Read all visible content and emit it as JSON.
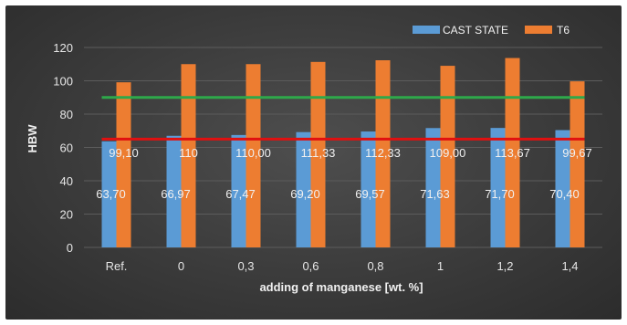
{
  "chart_data": {
    "type": "bar",
    "title": "",
    "xlabel": "adding of manganese [wt. %]",
    "ylabel": "HBW",
    "ylim": [
      0,
      120
    ],
    "yticks": [
      0,
      20,
      40,
      60,
      80,
      100,
      120
    ],
    "grid": true,
    "legend_position": "top-right",
    "categories": [
      "Ref.",
      "0",
      "0,3",
      "0,6",
      "0,8",
      "1",
      "1,2",
      "1,4"
    ],
    "series": [
      {
        "name": "CAST STATE",
        "color": "#5b9bd5",
        "values": [
          63.7,
          66.97,
          67.47,
          69.2,
          69.57,
          71.63,
          71.7,
          70.4
        ],
        "labels": [
          "63,70",
          "66,97",
          "67,47",
          "69,20",
          "69,57",
          "71,63",
          "71,70",
          "70,40"
        ]
      },
      {
        "name": "T6",
        "color": "#ed7d31",
        "values": [
          99.1,
          110.0,
          110.0,
          111.33,
          112.33,
          109.0,
          113.67,
          99.67
        ],
        "labels": [
          "99,10",
          "110",
          "110,00",
          "111,33",
          "112,33",
          "109,00",
          "113,67",
          "99,67"
        ]
      }
    ],
    "reference_lines": [
      {
        "value": 90,
        "color": "#2ea84a"
      },
      {
        "value": 65,
        "color": "#e01010"
      }
    ]
  }
}
